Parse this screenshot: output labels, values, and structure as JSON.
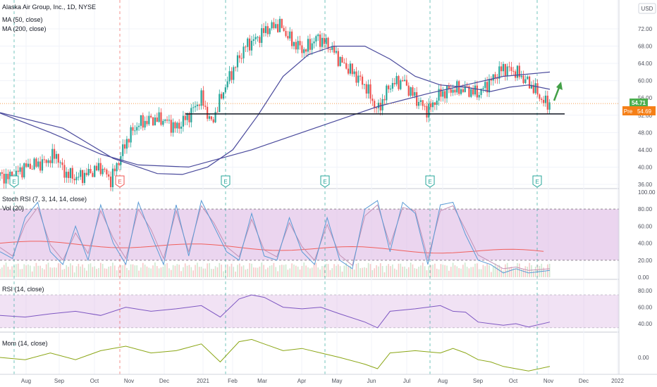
{
  "header": {
    "title": "Alaska Air Group, Inc., 1D, NYSE",
    "ma50_label": "MA (50, close)",
    "ma200_label": "MA (200, close)",
    "currency": "USD"
  },
  "price_badges": {
    "last": "54.71",
    "pre_label": "Pre",
    "pre_value": "54.69"
  },
  "panes": {
    "stoch_label": "Stoch RSI (7, 3, 14, 14, close)",
    "vol_label": "Vol (20)",
    "rsi_label": "RSI (14, close)",
    "mom_label": "Mom (14, close)"
  },
  "earnings_marker": "E",
  "colors": {
    "up": "#26a69a",
    "down": "#ef5350",
    "ma": "#4a4a9c",
    "band": "#e1bee7",
    "mom": "#8ba615",
    "stoch_k": "#5b9bd5",
    "stoch_d": "#c291b5",
    "vol_ma": "#f0605d",
    "pre": "#f57f17",
    "last": "#4caf50",
    "arrow": "#43a047"
  },
  "chart_data": {
    "type": "line",
    "x_ticks": [
      "Aug",
      "Sep",
      "Oct",
      "Nov",
      "Dec",
      "2021",
      "Feb",
      "Mar",
      "Apr",
      "May",
      "Jun",
      "Jul",
      "Aug",
      "Sep",
      "Oct",
      "Nov",
      "Dec",
      "2022"
    ],
    "price_axis": [
      "72.00",
      "68.00",
      "64.00",
      "60.00",
      "56.00",
      "52.00",
      "48.00",
      "44.00",
      "40.00",
      "36.00"
    ],
    "stoch_axis": [
      "100.00",
      "80.00",
      "60.00",
      "40.00",
      "20.00",
      "0.00"
    ],
    "rsi_axis": [
      "80.00",
      "60.00",
      "40.00"
    ],
    "mom_axis": [
      "0.00"
    ],
    "support_level": 52.3,
    "price_path": [
      [
        0,
        38
      ],
      [
        8,
        37.5
      ],
      [
        20,
        40
      ],
      [
        35,
        41
      ],
      [
        45,
        43
      ],
      [
        50,
        39
      ],
      [
        60,
        37.5
      ],
      [
        70,
        38.5
      ],
      [
        80,
        40
      ],
      [
        88,
        37
      ],
      [
        95,
        42
      ],
      [
        102,
        47
      ],
      [
        110,
        50
      ],
      [
        120,
        51
      ],
      [
        130,
        51
      ],
      [
        140,
        49
      ],
      [
        150,
        52
      ],
      [
        160,
        56
      ],
      [
        168,
        50
      ],
      [
        178,
        58
      ],
      [
        186,
        63
      ],
      [
        195,
        68
      ],
      [
        205,
        70
      ],
      [
        212,
        72
      ],
      [
        222,
        73
      ],
      [
        232,
        69
      ],
      [
        242,
        67
      ],
      [
        252,
        70
      ],
      [
        262,
        68
      ],
      [
        272,
        64
      ],
      [
        280,
        62
      ],
      [
        290,
        59
      ],
      [
        300,
        53
      ],
      [
        310,
        59
      ],
      [
        320,
        60
      ],
      [
        330,
        56
      ],
      [
        340,
        53
      ],
      [
        350,
        57
      ],
      [
        360,
        58
      ],
      [
        370,
        58
      ],
      [
        380,
        57
      ],
      [
        390,
        60
      ],
      [
        400,
        63
      ],
      [
        410,
        62
      ],
      [
        418,
        60
      ],
      [
        425,
        58
      ],
      [
        432,
        55
      ],
      [
        437,
        54.7
      ]
    ],
    "ma50_path": [
      [
        0,
        52.6
      ],
      [
        50,
        49
      ],
      [
        90,
        42
      ],
      [
        110,
        40
      ],
      [
        125,
        38.5
      ],
      [
        145,
        38.3
      ],
      [
        165,
        40
      ],
      [
        185,
        44
      ],
      [
        205,
        52
      ],
      [
        225,
        61
      ],
      [
        245,
        66
      ],
      [
        265,
        68
      ],
      [
        290,
        68
      ],
      [
        310,
        65
      ],
      [
        330,
        61
      ],
      [
        350,
        59
      ],
      [
        370,
        58.5
      ],
      [
        390,
        57.5
      ],
      [
        405,
        58.5
      ],
      [
        420,
        59
      ],
      [
        437,
        58
      ]
    ],
    "ma200_path": [
      [
        0,
        52.5
      ],
      [
        40,
        48
      ],
      [
        80,
        43
      ],
      [
        110,
        40.5
      ],
      [
        150,
        40
      ],
      [
        200,
        44
      ],
      [
        250,
        49
      ],
      [
        300,
        54
      ],
      [
        340,
        57
      ],
      [
        370,
        59
      ],
      [
        400,
        61
      ],
      [
        437,
        62
      ]
    ],
    "stoch_k": [
      [
        0,
        30
      ],
      [
        10,
        22
      ],
      [
        20,
        70
      ],
      [
        30,
        88
      ],
      [
        40,
        30
      ],
      [
        50,
        15
      ],
      [
        60,
        60
      ],
      [
        70,
        20
      ],
      [
        80,
        85
      ],
      [
        90,
        40
      ],
      [
        100,
        15
      ],
      [
        110,
        88
      ],
      [
        120,
        50
      ],
      [
        130,
        15
      ],
      [
        140,
        85
      ],
      [
        150,
        25
      ],
      [
        160,
        90
      ],
      [
        170,
        60
      ],
      [
        180,
        30
      ],
      [
        190,
        20
      ],
      [
        200,
        75
      ],
      [
        210,
        25
      ],
      [
        220,
        20
      ],
      [
        230,
        70
      ],
      [
        240,
        30
      ],
      [
        250,
        15
      ],
      [
        260,
        70
      ],
      [
        270,
        20
      ],
      [
        280,
        10
      ],
      [
        290,
        80
      ],
      [
        300,
        90
      ],
      [
        310,
        30
      ],
      [
        320,
        88
      ],
      [
        330,
        75
      ],
      [
        340,
        15
      ],
      [
        350,
        85
      ],
      [
        360,
        88
      ],
      [
        370,
        50
      ],
      [
        380,
        20
      ],
      [
        390,
        15
      ],
      [
        400,
        5
      ],
      [
        410,
        10
      ],
      [
        420,
        5
      ],
      [
        437,
        8
      ]
    ],
    "stoch_d": [
      [
        0,
        35
      ],
      [
        10,
        25
      ],
      [
        20,
        62
      ],
      [
        30,
        82
      ],
      [
        40,
        38
      ],
      [
        50,
        20
      ],
      [
        60,
        52
      ],
      [
        70,
        28
      ],
      [
        80,
        78
      ],
      [
        90,
        46
      ],
      [
        100,
        22
      ],
      [
        110,
        80
      ],
      [
        120,
        56
      ],
      [
        130,
        22
      ],
      [
        140,
        78
      ],
      [
        150,
        30
      ],
      [
        160,
        84
      ],
      [
        170,
        64
      ],
      [
        180,
        36
      ],
      [
        190,
        24
      ],
      [
        200,
        68
      ],
      [
        210,
        32
      ],
      [
        220,
        24
      ],
      [
        230,
        64
      ],
      [
        240,
        36
      ],
      [
        250,
        20
      ],
      [
        260,
        62
      ],
      [
        270,
        26
      ],
      [
        280,
        14
      ],
      [
        290,
        72
      ],
      [
        300,
        85
      ],
      [
        310,
        38
      ],
      [
        320,
        82
      ],
      [
        330,
        78
      ],
      [
        340,
        22
      ],
      [
        350,
        78
      ],
      [
        360,
        84
      ],
      [
        370,
        56
      ],
      [
        380,
        26
      ],
      [
        390,
        18
      ],
      [
        400,
        10
      ],
      [
        410,
        12
      ],
      [
        420,
        8
      ],
      [
        437,
        10
      ]
    ],
    "rsi": [
      [
        0,
        50
      ],
      [
        20,
        48
      ],
      [
        40,
        52
      ],
      [
        60,
        55
      ],
      [
        80,
        50
      ],
      [
        100,
        60
      ],
      [
        120,
        55
      ],
      [
        140,
        58
      ],
      [
        160,
        62
      ],
      [
        175,
        48
      ],
      [
        190,
        70
      ],
      [
        200,
        75
      ],
      [
        210,
        72
      ],
      [
        225,
        60
      ],
      [
        240,
        58
      ],
      [
        255,
        60
      ],
      [
        270,
        52
      ],
      [
        290,
        42
      ],
      [
        300,
        35
      ],
      [
        310,
        55
      ],
      [
        330,
        58
      ],
      [
        350,
        62
      ],
      [
        360,
        55
      ],
      [
        370,
        54
      ],
      [
        380,
        42
      ],
      [
        390,
        40
      ],
      [
        400,
        38
      ],
      [
        410,
        40
      ],
      [
        420,
        36
      ],
      [
        437,
        42
      ]
    ],
    "mom": [
      [
        0,
        0
      ],
      [
        20,
        -1
      ],
      [
        40,
        2
      ],
      [
        60,
        -1
      ],
      [
        80,
        3
      ],
      [
        100,
        5
      ],
      [
        120,
        2
      ],
      [
        140,
        3
      ],
      [
        160,
        6
      ],
      [
        175,
        -2
      ],
      [
        190,
        7
      ],
      [
        200,
        8
      ],
      [
        210,
        6
      ],
      [
        225,
        3
      ],
      [
        240,
        4
      ],
      [
        255,
        2
      ],
      [
        270,
        0
      ],
      [
        290,
        -3
      ],
      [
        300,
        -5
      ],
      [
        310,
        2
      ],
      [
        330,
        3
      ],
      [
        350,
        2
      ],
      [
        360,
        4
      ],
      [
        370,
        2
      ],
      [
        380,
        -1
      ],
      [
        390,
        -2
      ],
      [
        400,
        -4
      ],
      [
        410,
        -5
      ],
      [
        420,
        -6
      ],
      [
        437,
        -4
      ]
    ]
  }
}
